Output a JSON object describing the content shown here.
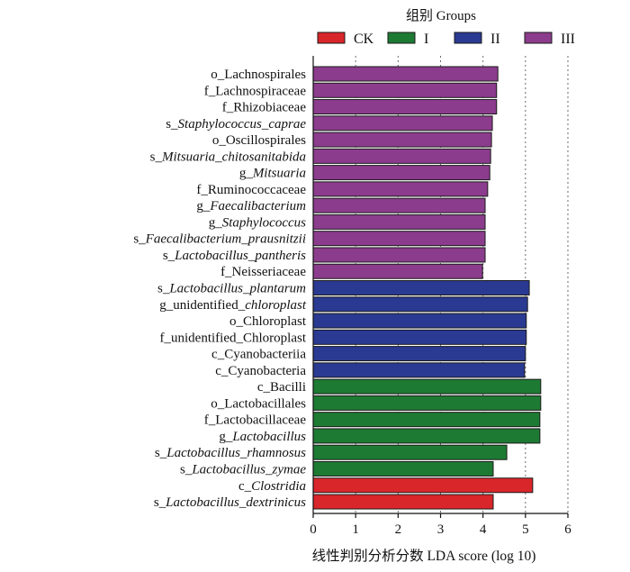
{
  "legend": {
    "title": "组别 Groups",
    "items": [
      {
        "name": "CK",
        "color": "#d9262a"
      },
      {
        "name": "I",
        "color": "#1d7a33"
      },
      {
        "name": "II",
        "color": "#2a3a92"
      },
      {
        "name": "III",
        "color": "#8c3c8c"
      }
    ]
  },
  "chart_data": {
    "type": "bar",
    "orientation": "horizontal",
    "title": "",
    "xlabel": "线性判别分析分数 LDA score (log 10)",
    "ylabel": "",
    "xlim": [
      0,
      6
    ],
    "xticks": [
      0,
      1,
      2,
      3,
      4,
      5,
      6
    ],
    "grid": true,
    "legend_position": "top",
    "bars": [
      {
        "label": "o_Lachnospirales",
        "italic_from": null,
        "group": "III",
        "value": 4.35
      },
      {
        "label": "f_Lachnospiraceae",
        "italic_from": null,
        "group": "III",
        "value": 4.32
      },
      {
        "label": "f_Rhizobiaceae",
        "italic_from": null,
        "group": "III",
        "value": 4.32
      },
      {
        "label": "s_Staphylococcus_caprae",
        "italic_from": 2,
        "group": "III",
        "value": 4.22
      },
      {
        "label": "o_Oscillospirales",
        "italic_from": null,
        "group": "III",
        "value": 4.2
      },
      {
        "label": "s_Mitsuaria_chitosanitabida",
        "italic_from": 2,
        "group": "III",
        "value": 4.18
      },
      {
        "label": "g_Mitsuaria",
        "italic_from": 2,
        "group": "III",
        "value": 4.16
      },
      {
        "label": "f_Ruminococcaceae",
        "italic_from": null,
        "group": "III",
        "value": 4.11
      },
      {
        "label": "g_Faecalibacterium",
        "italic_from": 2,
        "group": "III",
        "value": 4.05
      },
      {
        "label": "g_Staphylococcus",
        "italic_from": 2,
        "group": "III",
        "value": 4.05
      },
      {
        "label": "s_Faecalibacterium_prausnitzii",
        "italic_from": 2,
        "group": "III",
        "value": 4.05
      },
      {
        "label": "s_Lactobacillus_pantheris",
        "italic_from": 2,
        "group": "III",
        "value": 4.05
      },
      {
        "label": "f_Neisseriaceae",
        "italic_from": null,
        "group": "III",
        "value": 3.99
      },
      {
        "label": "s_Lactobacillus_plantarum",
        "italic_from": 2,
        "group": "II",
        "value": 5.09
      },
      {
        "label": "g_unidentified_chloroplast",
        "italic_from": 15,
        "group": "II",
        "value": 5.05
      },
      {
        "label": "o_Chloroplast",
        "italic_from": null,
        "group": "II",
        "value": 5.02
      },
      {
        "label": "f_unidentified_Chloroplast",
        "italic_from": null,
        "group": "II",
        "value": 5.02
      },
      {
        "label": "c_Cyanobacteriia",
        "italic_from": null,
        "group": "II",
        "value": 5.0
      },
      {
        "label": "c_Cyanobacteria",
        "italic_from": null,
        "group": "II",
        "value": 4.98
      },
      {
        "label": "c_Bacilli",
        "italic_from": null,
        "group": "I",
        "value": 5.36
      },
      {
        "label": "o_Lactobacillales",
        "italic_from": null,
        "group": "I",
        "value": 5.36
      },
      {
        "label": "f_Lactobacillaceae",
        "italic_from": null,
        "group": "I",
        "value": 5.34
      },
      {
        "label": "g_Lactobacillus",
        "italic_from": 2,
        "group": "I",
        "value": 5.34
      },
      {
        "label": "s_Lactobacillus_rhamnosus",
        "italic_from": 2,
        "group": "I",
        "value": 4.56
      },
      {
        "label": "s_Lactobacillus_zymae",
        "italic_from": 2,
        "group": "I",
        "value": 4.24
      },
      {
        "label": "c_Clostridia",
        "italic_from": 2,
        "group": "CK",
        "value": 5.17
      },
      {
        "label": "s_Lactobacillus_dextrinicus",
        "italic_from": 2,
        "group": "CK",
        "value": 4.24
      }
    ]
  }
}
